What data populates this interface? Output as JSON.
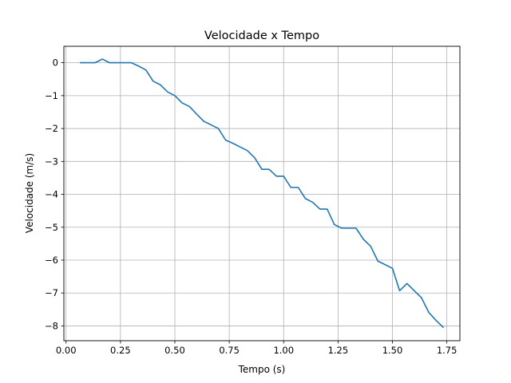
{
  "chart_data": {
    "type": "line",
    "title": "Velocidade x Tempo",
    "xlabel": "Tempo (s)",
    "ylabel": "Velocidade (m/s)",
    "xlim": [
      -0.01,
      1.81
    ],
    "ylim": [
      -8.45,
      0.5
    ],
    "xticks": [
      0.0,
      0.25,
      0.5,
      0.75,
      1.0,
      1.25,
      1.5,
      1.75
    ],
    "xtick_labels": [
      "0.00",
      "0.25",
      "0.50",
      "0.75",
      "1.00",
      "1.25",
      "1.50",
      "1.75"
    ],
    "yticks": [
      0,
      -1,
      -2,
      -3,
      -4,
      -5,
      -6,
      -7,
      -8
    ],
    "ytick_labels": [
      "0",
      "−1",
      "−2",
      "−3",
      "−4",
      "−5",
      "−6",
      "−7",
      "−8"
    ],
    "grid": true,
    "line_color": "#1f77b4",
    "series": [
      {
        "x": [
          0.067,
          0.1,
          0.133,
          0.167,
          0.2,
          0.233,
          0.267,
          0.3,
          0.333,
          0.367,
          0.4,
          0.433,
          0.467,
          0.5,
          0.533,
          0.567,
          0.6,
          0.633,
          0.667,
          0.7,
          0.733,
          0.767,
          0.8,
          0.833,
          0.867,
          0.9,
          0.933,
          0.967,
          1.0,
          1.033,
          1.067,
          1.1,
          1.133,
          1.167,
          1.2,
          1.233,
          1.267,
          1.3,
          1.333,
          1.367,
          1.4,
          1.433,
          1.467,
          1.5,
          1.533,
          1.567,
          1.6,
          1.633,
          1.667,
          1.7,
          1.733
        ],
        "y": [
          0.0,
          0.0,
          0.0,
          0.11,
          0.0,
          0.0,
          0.0,
          0.0,
          -0.1,
          -0.22,
          -0.56,
          -0.67,
          -0.89,
          -1.0,
          -1.22,
          -1.33,
          -1.56,
          -1.78,
          -1.89,
          -2.0,
          -2.35,
          -2.45,
          -2.56,
          -2.67,
          -2.89,
          -3.24,
          -3.24,
          -3.45,
          -3.45,
          -3.79,
          -3.79,
          -4.13,
          -4.24,
          -4.45,
          -4.45,
          -4.92,
          -5.03,
          -5.03,
          -5.03,
          -5.37,
          -5.58,
          -6.03,
          -6.14,
          -6.25,
          -6.93,
          -6.71,
          -6.93,
          -7.14,
          -7.59,
          -7.83,
          -8.04
        ]
      }
    ]
  }
}
